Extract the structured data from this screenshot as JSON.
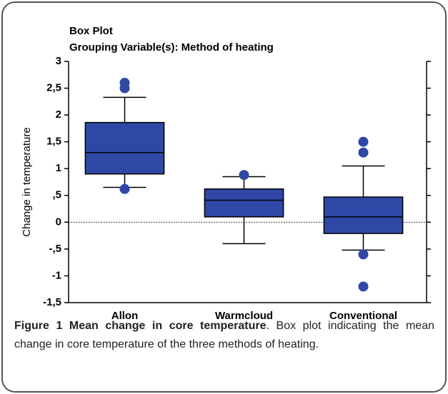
{
  "chart_data": {
    "type": "box",
    "title": "Box Plot",
    "subtitle": "Grouping Variable(s): Method of heating",
    "ylabel": "Change in temperature",
    "categories": [
      "Allon",
      "Warmcloud",
      "Conventional"
    ],
    "color": "#2f48a6",
    "whisker_low": [
      0.65,
      -0.4,
      -0.52
    ],
    "q1": [
      0.9,
      0.1,
      -0.21
    ],
    "median": [
      1.3,
      0.41,
      0.1
    ],
    "q3": [
      1.86,
      0.62,
      0.47
    ],
    "whisker_high": [
      2.33,
      0.85,
      1.05
    ],
    "outliers": [
      [
        2.6,
        2.5,
        0.62
      ],
      [
        0.88
      ],
      [
        1.5,
        1.3,
        -0.6,
        -1.2
      ]
    ],
    "ylim": [
      -1.5,
      3
    ],
    "yticks": [
      {
        "value": -1.5,
        "label": "-1,5"
      },
      {
        "value": -1,
        "label": "-1"
      },
      {
        "value": -0.5,
        "label": "-,5"
      },
      {
        "value": 0,
        "label": "0"
      },
      {
        "value": 0.5,
        "label": ",5"
      },
      {
        "value": 1,
        "label": "1"
      },
      {
        "value": 1.5,
        "label": "1,5"
      },
      {
        "value": 2,
        "label": "2"
      },
      {
        "value": 2.5,
        "label": "2,5"
      },
      {
        "value": 3,
        "label": "3"
      }
    ],
    "hline": 0
  },
  "caption": {
    "bold": "Figure 1 Mean change in core temperature",
    "text": ". Box plot indicating the mean change in core temperature of the three methods of heating."
  }
}
